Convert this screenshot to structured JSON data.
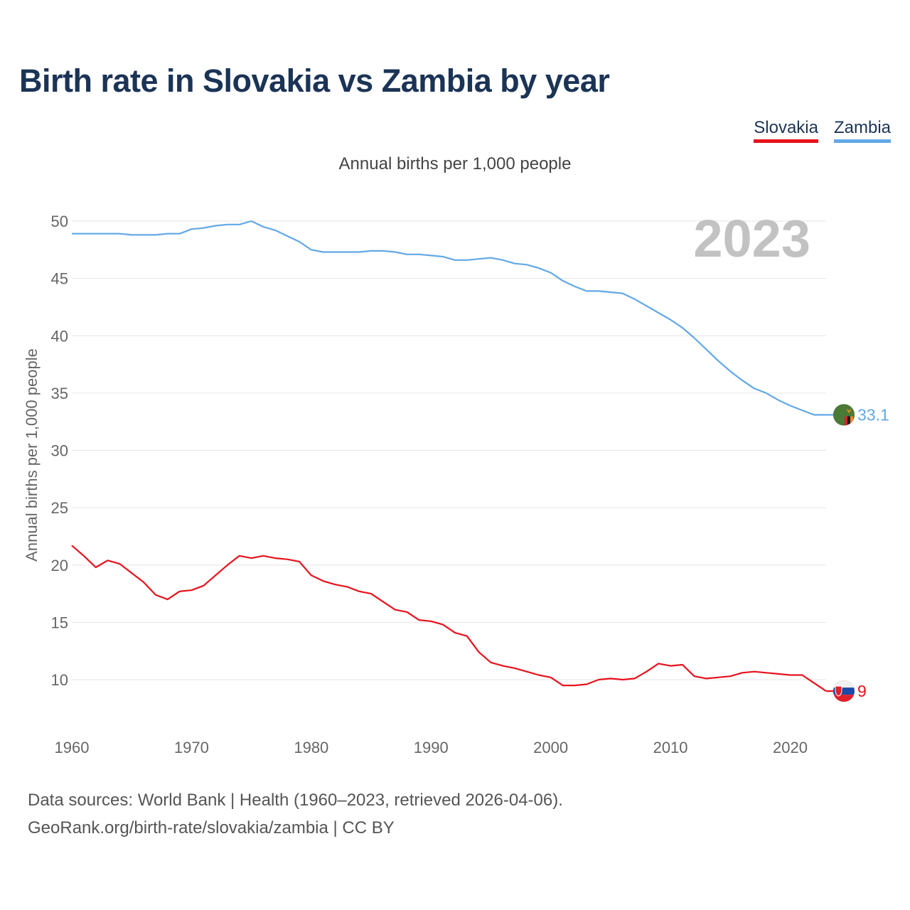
{
  "title": "Birth rate in Slovakia vs Zambia by year",
  "subtitle": "Annual births per 1,000 people",
  "footer": {
    "line1": "Data sources: World Bank | Health (1960–2023, retrieved 2026-04-06).",
    "line2": "GeoRank.org/birth-rate/slovakia/zambia | CC BY"
  },
  "chart_data": {
    "type": "line",
    "title": "Birth rate in Slovakia vs Zambia by year",
    "subtitle": "Annual births per 1,000 people",
    "ylabel": "Annual births per 1,000 people",
    "xlabel": "",
    "year_label": "2023",
    "xlim": [
      1960,
      2023
    ],
    "ylim": [
      5,
      52
    ],
    "xticks": [
      1960,
      1970,
      1980,
      1990,
      2000,
      2010,
      2020
    ],
    "yticks": [
      10,
      15,
      20,
      25,
      30,
      35,
      40,
      45,
      50
    ],
    "legend": {
      "position": "top-right"
    },
    "x": [
      1960,
      1961,
      1962,
      1963,
      1964,
      1965,
      1966,
      1967,
      1968,
      1969,
      1970,
      1971,
      1972,
      1973,
      1974,
      1975,
      1976,
      1977,
      1978,
      1979,
      1980,
      1981,
      1982,
      1983,
      1984,
      1985,
      1986,
      1987,
      1988,
      1989,
      1990,
      1991,
      1992,
      1993,
      1994,
      1995,
      1996,
      1997,
      1998,
      1999,
      2000,
      2001,
      2002,
      2003,
      2004,
      2005,
      2006,
      2007,
      2008,
      2009,
      2010,
      2011,
      2012,
      2013,
      2014,
      2015,
      2016,
      2017,
      2018,
      2019,
      2020,
      2021,
      2022,
      2023
    ],
    "series": [
      {
        "name": "Slovakia",
        "color": "#e8121c",
        "end_label": "9",
        "flag": "slovakia-flag",
        "values": [
          21.7,
          20.8,
          19.8,
          20.4,
          20.1,
          19.3,
          18.5,
          17.4,
          17.0,
          17.7,
          17.8,
          18.2,
          19.1,
          20.0,
          20.8,
          20.6,
          20.8,
          20.6,
          20.5,
          20.3,
          19.1,
          18.6,
          18.3,
          18.1,
          17.7,
          17.5,
          16.8,
          16.1,
          15.9,
          15.2,
          15.1,
          14.8,
          14.1,
          13.8,
          12.4,
          11.5,
          11.2,
          11.0,
          10.7,
          10.4,
          10.2,
          9.5,
          9.5,
          9.6,
          10.0,
          10.1,
          10.0,
          10.1,
          10.7,
          11.4,
          11.2,
          11.3,
          10.3,
          10.1,
          10.2,
          10.3,
          10.6,
          10.7,
          10.6,
          10.5,
          10.4,
          10.4,
          9.7,
          9.0
        ]
      },
      {
        "name": "Zambia",
        "color": "#62a8e6",
        "end_label": "33.1",
        "flag": "zambia-flag",
        "values": [
          48.9,
          48.9,
          48.9,
          48.9,
          48.9,
          48.8,
          48.8,
          48.8,
          48.9,
          48.9,
          49.3,
          49.4,
          49.6,
          49.7,
          49.7,
          50.0,
          49.5,
          49.2,
          48.7,
          48.2,
          47.5,
          47.3,
          47.3,
          47.3,
          47.3,
          47.4,
          47.4,
          47.3,
          47.1,
          47.1,
          47.0,
          46.9,
          46.6,
          46.6,
          46.7,
          46.8,
          46.6,
          46.3,
          46.2,
          45.9,
          45.5,
          44.8,
          44.3,
          43.9,
          43.9,
          43.8,
          43.7,
          43.2,
          42.6,
          42.0,
          41.4,
          40.7,
          39.8,
          38.8,
          37.8,
          36.9,
          36.1,
          35.4,
          35.0,
          34.4,
          33.9,
          33.5,
          33.1,
          33.1
        ]
      }
    ]
  }
}
